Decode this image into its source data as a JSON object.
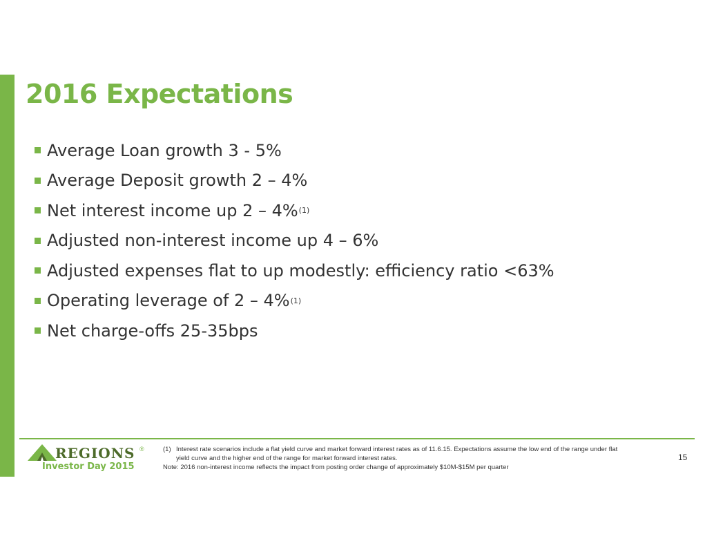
{
  "slide": {
    "title": "2016 Expectations",
    "bullets": [
      {
        "text": "Average Loan growth 3 - 5%",
        "note": ""
      },
      {
        "text": "Average Deposit growth 2 – 4%",
        "note": ""
      },
      {
        "text": "Net interest income up 2 – 4%",
        "note": "(1)"
      },
      {
        "text": "Adjusted non-interest income up 4 – 6%",
        "note": ""
      },
      {
        "text": "Adjusted expenses flat to up modestly: efficiency ratio <63%",
        "note": ""
      },
      {
        "text": "Operating leverage of 2 – 4%",
        "note": "(1)"
      },
      {
        "text": "Net charge-offs 25-35bps",
        "note": ""
      }
    ]
  },
  "footer": {
    "logo": {
      "wordmark": "REGIONS",
      "registered": "®",
      "event": "Investor Day 2015",
      "icon": "triangle-logo-icon"
    },
    "footnotes": [
      {
        "number": "(1)",
        "text": "Interest rate scenarios include a flat yield curve and market forward interest rates as of 11.6.15. Expectations assume the low end of the range under flat yield curve and the higher end of the range for market forward interest rates."
      },
      {
        "number": "",
        "text": "Note: 2016 non-interest income reflects the impact from posting order change of approximately $10M-$15M per quarter"
      }
    ],
    "page_number": "15"
  },
  "colors": {
    "accent": "#7ab648",
    "logo_dark": "#4d6b2a",
    "text": "#333333"
  }
}
